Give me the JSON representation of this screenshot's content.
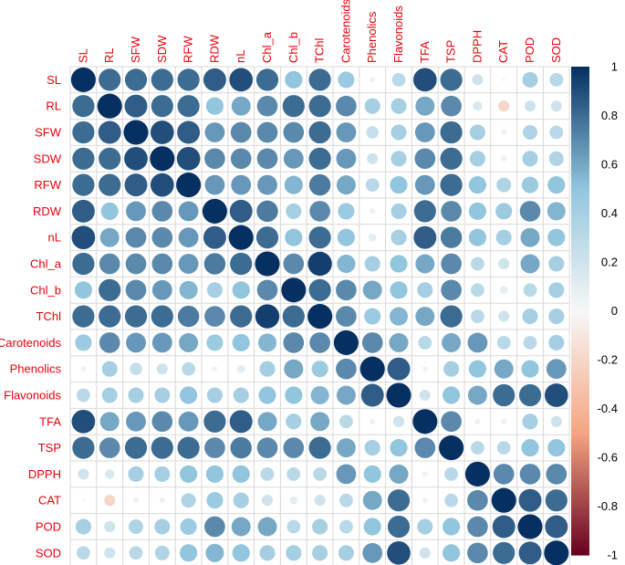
{
  "chart_data": {
    "type": "heatmap",
    "title": "",
    "variables": [
      "SL",
      "RL",
      "SFW",
      "SDW",
      "RFW",
      "RDW",
      "nL",
      "Chl_a",
      "Chl_b",
      "TChl",
      "Carotenoids",
      "Phenolics",
      "Flavonoids",
      "TFA",
      "TSP",
      "DPPH",
      "CAT",
      "POD",
      "SOD"
    ],
    "matrix": [
      [
        1.0,
        0.8,
        0.8,
        0.8,
        0.8,
        0.85,
        0.9,
        0.8,
        0.5,
        0.8,
        0.45,
        0.05,
        0.3,
        0.9,
        0.8,
        0.2,
        0.02,
        0.4,
        0.3
      ],
      [
        0.8,
        1.0,
        0.85,
        0.8,
        0.8,
        0.5,
        0.6,
        0.7,
        0.8,
        0.8,
        0.7,
        0.4,
        0.4,
        0.6,
        0.7,
        0.15,
        -0.2,
        0.2,
        0.2
      ],
      [
        0.8,
        0.85,
        1.0,
        0.9,
        0.85,
        0.65,
        0.7,
        0.7,
        0.7,
        0.8,
        0.65,
        0.25,
        0.4,
        0.65,
        0.8,
        0.4,
        0.05,
        0.35,
        0.3
      ],
      [
        0.8,
        0.8,
        0.9,
        1.0,
        0.9,
        0.7,
        0.7,
        0.7,
        0.65,
        0.8,
        0.65,
        0.2,
        0.4,
        0.7,
        0.8,
        0.4,
        0.05,
        0.4,
        0.35
      ],
      [
        0.8,
        0.8,
        0.85,
        0.9,
        1.0,
        0.65,
        0.65,
        0.65,
        0.55,
        0.75,
        0.6,
        0.3,
        0.5,
        0.65,
        0.8,
        0.5,
        0.35,
        0.45,
        0.5
      ],
      [
        0.85,
        0.5,
        0.65,
        0.7,
        0.65,
        1.0,
        0.85,
        0.75,
        0.4,
        0.7,
        0.45,
        0.05,
        0.4,
        0.8,
        0.7,
        0.5,
        0.45,
        0.7,
        0.55
      ],
      [
        0.9,
        0.6,
        0.7,
        0.7,
        0.65,
        0.85,
        1.0,
        0.8,
        0.5,
        0.8,
        0.5,
        0.1,
        0.4,
        0.85,
        0.75,
        0.5,
        0.4,
        0.6,
        0.5
      ],
      [
        0.8,
        0.7,
        0.7,
        0.7,
        0.65,
        0.75,
        0.8,
        1.0,
        0.7,
        0.95,
        0.55,
        0.4,
        0.5,
        0.6,
        0.7,
        0.3,
        0.2,
        0.6,
        0.4
      ],
      [
        0.5,
        0.8,
        0.7,
        0.65,
        0.55,
        0.4,
        0.5,
        0.7,
        1.0,
        0.8,
        0.7,
        0.6,
        0.5,
        0.4,
        0.7,
        0.3,
        0.1,
        0.3,
        0.4
      ],
      [
        0.8,
        0.8,
        0.8,
        0.8,
        0.75,
        0.7,
        0.8,
        0.95,
        0.8,
        1.0,
        0.7,
        0.45,
        0.55,
        0.6,
        0.8,
        0.3,
        0.2,
        0.4,
        0.4
      ],
      [
        0.45,
        0.7,
        0.65,
        0.65,
        0.6,
        0.45,
        0.5,
        0.55,
        0.7,
        0.7,
        1.0,
        0.7,
        0.6,
        0.3,
        0.6,
        0.65,
        0.3,
        0.3,
        0.4
      ],
      [
        0.05,
        0.4,
        0.25,
        0.2,
        0.3,
        0.05,
        0.1,
        0.4,
        0.6,
        0.45,
        0.7,
        1.0,
        0.85,
        0.05,
        0.4,
        0.5,
        0.6,
        0.5,
        0.65
      ],
      [
        0.3,
        0.4,
        0.4,
        0.4,
        0.5,
        0.4,
        0.4,
        0.5,
        0.5,
        0.55,
        0.6,
        0.85,
        1.0,
        0.2,
        0.5,
        0.6,
        0.8,
        0.8,
        0.9
      ],
      [
        0.9,
        0.6,
        0.65,
        0.7,
        0.65,
        0.8,
        0.85,
        0.6,
        0.4,
        0.6,
        0.3,
        0.05,
        0.2,
        1.0,
        0.7,
        0.05,
        0.05,
        0.4,
        0.2
      ],
      [
        0.8,
        0.7,
        0.8,
        0.8,
        0.8,
        0.7,
        0.75,
        0.7,
        0.7,
        0.8,
        0.6,
        0.4,
        0.5,
        0.7,
        1.0,
        0.3,
        0.3,
        0.5,
        0.5
      ],
      [
        0.2,
        0.15,
        0.4,
        0.4,
        0.5,
        0.5,
        0.5,
        0.3,
        0.3,
        0.3,
        0.65,
        0.5,
        0.6,
        0.05,
        0.3,
        1.0,
        0.7,
        0.7,
        0.7
      ],
      [
        0.02,
        -0.2,
        0.05,
        0.05,
        0.35,
        0.45,
        0.4,
        0.2,
        0.1,
        0.2,
        0.3,
        0.6,
        0.8,
        0.05,
        0.3,
        0.7,
        1.0,
        0.85,
        0.8
      ],
      [
        0.4,
        0.2,
        0.35,
        0.4,
        0.45,
        0.7,
        0.6,
        0.6,
        0.3,
        0.4,
        0.3,
        0.5,
        0.8,
        0.4,
        0.5,
        0.7,
        0.85,
        1.0,
        0.85
      ],
      [
        0.3,
        0.2,
        0.3,
        0.35,
        0.5,
        0.55,
        0.5,
        0.4,
        0.4,
        0.4,
        0.4,
        0.65,
        0.9,
        0.2,
        0.5,
        0.7,
        0.8,
        0.85,
        1.0
      ]
    ],
    "colorbar": {
      "min": -1,
      "max": 1,
      "ticks": [
        "1",
        "0.8",
        "0.6",
        "0.4",
        "0.2",
        "0",
        "-0.2",
        "-0.4",
        "-0.6",
        "-0.8",
        "-1"
      ]
    },
    "label_color": "#e8000b",
    "colors": {
      "neg_end": "#67001f",
      "neg_mid": "#f4a582",
      "zero": "#f7f7f7",
      "pos_mid": "#92c5de",
      "pos_end": "#053061",
      "grid": "#d9d9d9"
    }
  }
}
